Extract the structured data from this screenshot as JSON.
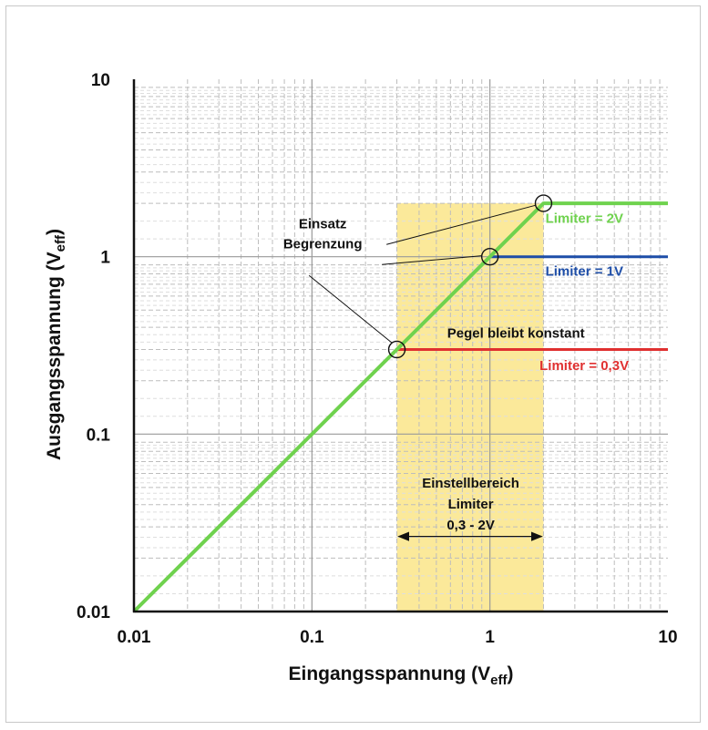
{
  "chart_data": {
    "type": "line",
    "x_scale": "log",
    "y_scale": "log",
    "xlim": [
      0.01,
      10
    ],
    "ylim": [
      0.01,
      10
    ],
    "xlabel": {
      "main": "Eingangsspannung (V",
      "sub": "eff",
      "end": ")"
    },
    "ylabel": {
      "main": "Ausgangsspannung (V",
      "sub": "eff",
      "end": ")"
    },
    "x_ticks": [
      {
        "value": 0.01,
        "label": "0.01"
      },
      {
        "value": 0.1,
        "label": "0.1"
      },
      {
        "value": 1,
        "label": "1"
      },
      {
        "value": 10,
        "label": "10"
      }
    ],
    "y_ticks": [
      {
        "value": 0.01,
        "label": "0.01"
      },
      {
        "value": 0.1,
        "label": "0.1"
      },
      {
        "value": 1,
        "label": "1"
      },
      {
        "value": 10,
        "label": "10"
      }
    ],
    "grid": true,
    "series": [
      {
        "name": "Limiter = 0,3V",
        "color": "#e03030",
        "points": [
          [
            0.01,
            0.01
          ],
          [
            0.3,
            0.3
          ],
          [
            10,
            0.3
          ]
        ]
      },
      {
        "name": "Limiter = 1V",
        "color": "#1e4ea8",
        "points": [
          [
            0.01,
            0.01
          ],
          [
            1,
            1
          ],
          [
            10,
            1
          ]
        ]
      },
      {
        "name": "Limiter = 2V",
        "color": "#6fd24e",
        "points": [
          [
            0.01,
            0.01
          ],
          [
            2,
            2
          ],
          [
            10,
            2
          ]
        ]
      }
    ],
    "series_labels": [
      {
        "text": "Limiter = 2V",
        "color": "#6fd24e",
        "x": 2.05,
        "y": 1.55
      },
      {
        "text": "Limiter = 1V",
        "color": "#1e4ea8",
        "x": 2.05,
        "y": 0.78
      },
      {
        "text": "Limiter = 0,3V",
        "color": "#e03030",
        "x": 1.9,
        "y": 0.23
      }
    ],
    "shaded_region": {
      "x_from": 0.3,
      "x_to": 2,
      "color": "#fbe99a"
    },
    "knee_points": [
      [
        0.3,
        0.3
      ],
      [
        1,
        1
      ],
      [
        2,
        2
      ]
    ],
    "annotations": {
      "einsatz_lines": [
        "Einsatz",
        "Begrenzung"
      ],
      "einsatz_anchor": {
        "x": 0.115,
        "y": 1.45
      },
      "pegel": {
        "text": "Pegel bleibt konstant",
        "x": 1.4,
        "y": 0.35
      },
      "einstell_lines": [
        "Einstellbereich",
        "Limiter",
        "0,3 - 2V"
      ],
      "einstell_anchor": {
        "x": 0.78,
        "y": 0.05
      },
      "range_arrow": {
        "from": 0.3,
        "to": 2,
        "y": 0.0265
      }
    }
  }
}
